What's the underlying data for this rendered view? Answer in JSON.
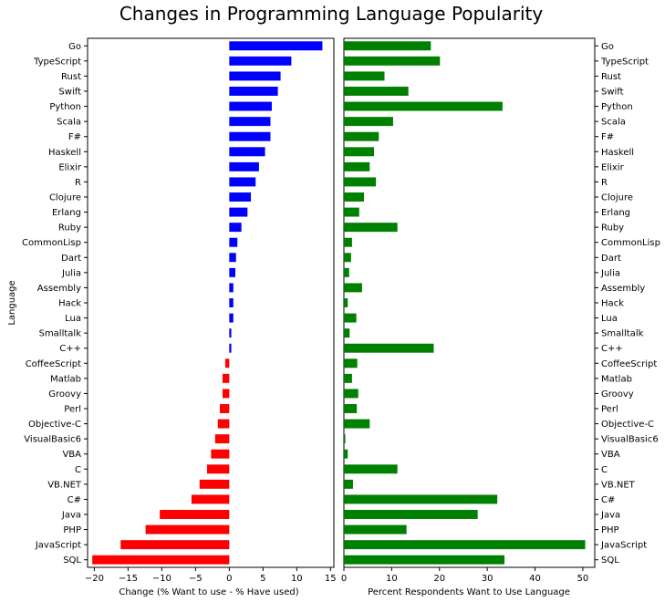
{
  "chart_data": {
    "type": "bar",
    "title": "Changes in Programming Language Popularity",
    "categories": [
      "Go",
      "TypeScript",
      "Rust",
      "Swift",
      "Python",
      "Scala",
      "F#",
      "Haskell",
      "Elixir",
      "R",
      "Clojure",
      "Erlang",
      "Ruby",
      "CommonLisp",
      "Dart",
      "Julia",
      "Assembly",
      "Hack",
      "Lua",
      "Smalltalk",
      "C++",
      "CoffeeScript",
      "Matlab",
      "Groovy",
      "Perl",
      "Objective-C",
      "VisualBasic6",
      "VBA",
      "C",
      "VB.NET",
      "C#",
      "Java",
      "PHP",
      "JavaScript",
      "SQL"
    ],
    "ylabel": "Language",
    "panels": [
      {
        "name": "change",
        "xlabel": "Change (% Want to use - % Have used)",
        "xlim": [
          -21,
          15.5
        ],
        "xticks": [
          -20,
          -15,
          -10,
          -5,
          0,
          5,
          10,
          15
        ],
        "positive_color": "#0000ff",
        "negative_color": "#ff0000",
        "values": [
          13.8,
          9.2,
          7.6,
          7.2,
          6.3,
          6.1,
          6.1,
          5.3,
          4.4,
          3.9,
          3.2,
          2.7,
          1.8,
          1.2,
          1.0,
          0.9,
          0.6,
          0.6,
          0.6,
          0.3,
          0.3,
          -0.6,
          -1.0,
          -1.0,
          -1.4,
          -1.7,
          -2.1,
          -2.7,
          -3.3,
          -4.4,
          -5.6,
          -10.3,
          -12.4,
          -16.1,
          -20.3
        ]
      },
      {
        "name": "want",
        "xlabel": "Percent Respondents Want to Use Language",
        "xlim": [
          0,
          52.5
        ],
        "xticks": [
          0,
          10,
          20,
          30,
          40,
          50
        ],
        "color": "#008000",
        "values": [
          18.2,
          20.1,
          8.5,
          13.5,
          33.2,
          10.3,
          7.3,
          6.3,
          5.4,
          6.7,
          4.2,
          3.2,
          11.2,
          1.7,
          1.5,
          1.1,
          3.8,
          0.8,
          2.6,
          1.2,
          18.8,
          2.8,
          1.7,
          3.0,
          2.7,
          5.4,
          0.3,
          0.8,
          11.2,
          1.9,
          32.1,
          28.0,
          13.1,
          50.5,
          33.6
        ]
      }
    ]
  }
}
